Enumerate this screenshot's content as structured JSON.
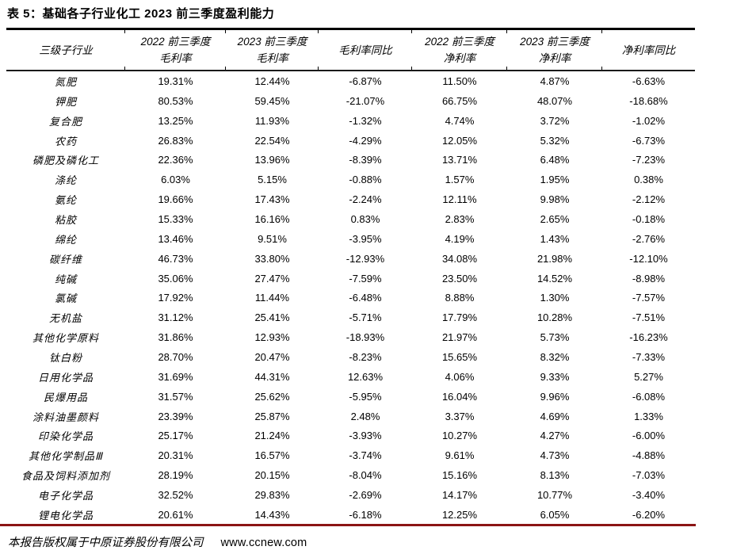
{
  "page": {
    "title": "表 5：基础各子行业化工 2023 前三季度盈利能力"
  },
  "table": {
    "columns": [
      {
        "line1": "三级子行业",
        "line2": ""
      },
      {
        "line1": "2022 前三季度",
        "line2": "毛利率"
      },
      {
        "line1": "2023 前三季度",
        "line2": "毛利率"
      },
      {
        "line1": "毛利率同比",
        "line2": ""
      },
      {
        "line1": "2022 前三季度",
        "line2": "净利率"
      },
      {
        "line1": "2023 前三季度",
        "line2": "净利率"
      },
      {
        "line1": "净利率同比",
        "line2": ""
      }
    ],
    "rows": [
      {
        "industry": "氮肥",
        "values": [
          "19.31%",
          "12.44%",
          "-6.87%",
          "11.50%",
          "4.87%",
          "-6.63%"
        ]
      },
      {
        "industry": "钾肥",
        "values": [
          "80.53%",
          "59.45%",
          "-21.07%",
          "66.75%",
          "48.07%",
          "-18.68%"
        ]
      },
      {
        "industry": "复合肥",
        "values": [
          "13.25%",
          "11.93%",
          "-1.32%",
          "4.74%",
          "3.72%",
          "-1.02%"
        ]
      },
      {
        "industry": "农药",
        "values": [
          "26.83%",
          "22.54%",
          "-4.29%",
          "12.05%",
          "5.32%",
          "-6.73%"
        ]
      },
      {
        "industry": "磷肥及磷化工",
        "values": [
          "22.36%",
          "13.96%",
          "-8.39%",
          "13.71%",
          "6.48%",
          "-7.23%"
        ]
      },
      {
        "industry": "涤纶",
        "values": [
          "6.03%",
          "5.15%",
          "-0.88%",
          "1.57%",
          "1.95%",
          "0.38%"
        ]
      },
      {
        "industry": "氨纶",
        "values": [
          "19.66%",
          "17.43%",
          "-2.24%",
          "12.11%",
          "9.98%",
          "-2.12%"
        ]
      },
      {
        "industry": "粘胶",
        "values": [
          "15.33%",
          "16.16%",
          "0.83%",
          "2.83%",
          "2.65%",
          "-0.18%"
        ]
      },
      {
        "industry": "绵纶",
        "values": [
          "13.46%",
          "9.51%",
          "-3.95%",
          "4.19%",
          "1.43%",
          "-2.76%"
        ]
      },
      {
        "industry": "碳纤维",
        "values": [
          "46.73%",
          "33.80%",
          "-12.93%",
          "34.08%",
          "21.98%",
          "-12.10%"
        ]
      },
      {
        "industry": "纯碱",
        "values": [
          "35.06%",
          "27.47%",
          "-7.59%",
          "23.50%",
          "14.52%",
          "-8.98%"
        ]
      },
      {
        "industry": "氯碱",
        "values": [
          "17.92%",
          "11.44%",
          "-6.48%",
          "8.88%",
          "1.30%",
          "-7.57%"
        ]
      },
      {
        "industry": "无机盐",
        "values": [
          "31.12%",
          "25.41%",
          "-5.71%",
          "17.79%",
          "10.28%",
          "-7.51%"
        ]
      },
      {
        "industry": "其他化学原料",
        "values": [
          "31.86%",
          "12.93%",
          "-18.93%",
          "21.97%",
          "5.73%",
          "-16.23%"
        ]
      },
      {
        "industry": "钛白粉",
        "values": [
          "28.70%",
          "20.47%",
          "-8.23%",
          "15.65%",
          "8.32%",
          "-7.33%"
        ]
      },
      {
        "industry": "日用化学品",
        "values": [
          "31.69%",
          "44.31%",
          "12.63%",
          "4.06%",
          "9.33%",
          "5.27%"
        ]
      },
      {
        "industry": "民爆用品",
        "values": [
          "31.57%",
          "25.62%",
          "-5.95%",
          "16.04%",
          "9.96%",
          "-6.08%"
        ]
      },
      {
        "industry": "涂料油墨颜料",
        "values": [
          "23.39%",
          "25.87%",
          "2.48%",
          "3.37%",
          "4.69%",
          "1.33%"
        ]
      },
      {
        "industry": "印染化学品",
        "values": [
          "25.17%",
          "21.24%",
          "-3.93%",
          "10.27%",
          "4.27%",
          "-6.00%"
        ]
      },
      {
        "industry": "其他化学制品Ⅲ",
        "values": [
          "20.31%",
          "16.57%",
          "-3.74%",
          "9.61%",
          "4.73%",
          "-4.88%"
        ]
      },
      {
        "industry": "食品及饲料添加剂",
        "values": [
          "28.19%",
          "20.15%",
          "-8.04%",
          "15.16%",
          "8.13%",
          "-7.03%"
        ]
      },
      {
        "industry": "电子化学品",
        "values": [
          "32.52%",
          "29.83%",
          "-2.69%",
          "14.17%",
          "10.77%",
          "-3.40%"
        ]
      },
      {
        "industry": "锂电化学品",
        "values": [
          "20.61%",
          "14.43%",
          "-6.18%",
          "12.25%",
          "6.05%",
          "-6.20%"
        ]
      }
    ]
  },
  "footer": {
    "copyright": "本报告版权属于中原证券股份有限公司",
    "website": "www.ccnew.com"
  },
  "colors": {
    "footer_rule": "#8B1414",
    "table_rule": "#000000",
    "text": "#000000"
  }
}
